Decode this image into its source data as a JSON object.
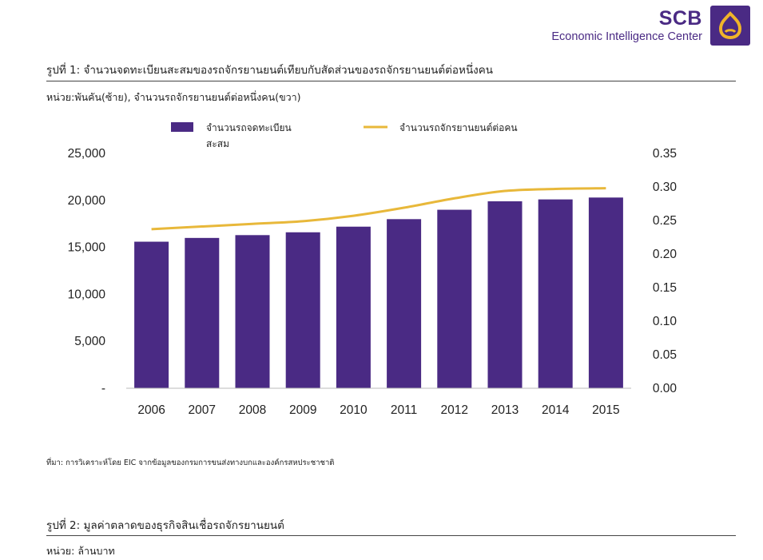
{
  "brand": {
    "name": "SCB",
    "subtitle": "Economic Intelligence Center",
    "logo_color": "#4a2a84",
    "logo_icon": "scb-bell-icon"
  },
  "figure1": {
    "title": "รูปที่ 1: จำนวนจดทะเบียนสะสมของรถจักรยานยนต์เทียบกับสัดส่วนของรถจักรยานยนต์ต่อหนึ่งคน",
    "unit": "หน่วย:พันคัน(ซ้าย), จำนวนรถจักรยานยนต์ต่อหนึ่งคน(ขวา)",
    "source": "ที่มา: การวิเคราะห์โดย EIC จากข้อมูลของกรมการขนส่งทางบกและองค์กรสหประชาชาติ"
  },
  "chart_data": {
    "type": "bar",
    "categories": [
      "2006",
      "2007",
      "2008",
      "2009",
      "2010",
      "2011",
      "2012",
      "2013",
      "2014",
      "2015"
    ],
    "series": [
      {
        "name": "จำนวนรถจดทะเบียนสะสม",
        "kind": "bar",
        "axis": "left",
        "color": "#4a2a84",
        "values": [
          15600,
          16000,
          16300,
          16600,
          17200,
          18000,
          19000,
          19900,
          20100,
          20300
        ]
      },
      {
        "name": "จำนวนรถจักรยานยนต์ต่อคน",
        "kind": "line",
        "axis": "right",
        "color": "#e8b83a",
        "values": [
          0.237,
          0.241,
          0.245,
          0.249,
          0.257,
          0.269,
          0.283,
          0.294,
          0.297,
          0.298
        ]
      }
    ],
    "y_left": {
      "ylim": [
        0,
        25000
      ],
      "ticks": [
        0,
        5000,
        10000,
        15000,
        20000,
        25000
      ],
      "tick_labels": [
        "-",
        "5,000",
        "10,000",
        "15,000",
        "20,000",
        "25,000"
      ]
    },
    "y_right": {
      "ylim": [
        0,
        0.35
      ],
      "ticks": [
        0,
        0.05,
        0.1,
        0.15,
        0.2,
        0.25,
        0.3,
        0.35
      ],
      "tick_labels": [
        "0.00",
        "0.05",
        "0.10",
        "0.15",
        "0.20",
        "0.25",
        "0.30",
        "0.35"
      ]
    },
    "legend": {
      "placement": "top",
      "bar_label_lines": [
        "จำนวนรถจดทะเบียน",
        "สะสม"
      ],
      "line_label": "จำนวนรถจักรยานยนต์ต่อคน"
    },
    "grid": false
  },
  "figure2": {
    "title": "รูปที่ 2: มูลค่าตลาดของธุรกิจสินเชื่อรถจักรยานยนต์",
    "unit": "หน่วย: ล้านบาท"
  }
}
